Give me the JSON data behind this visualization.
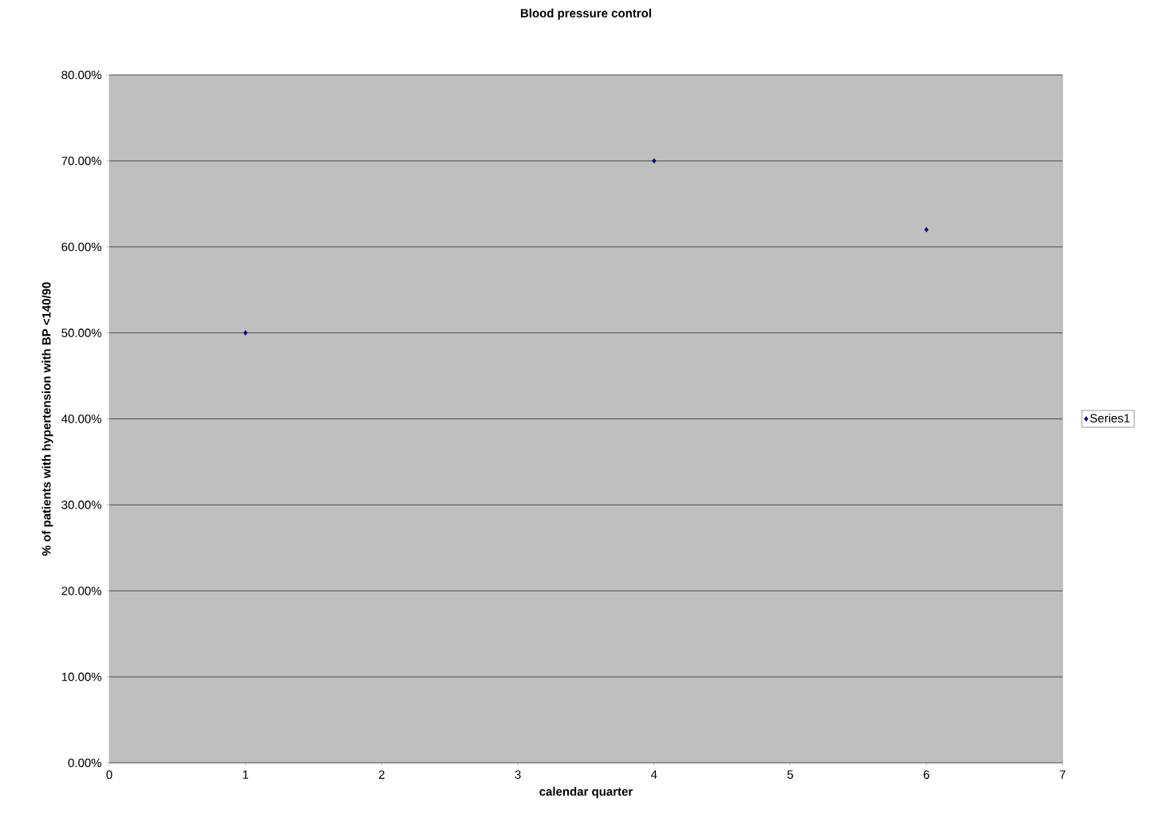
{
  "chart_data": {
    "type": "scatter",
    "title": "Blood pressure control",
    "xlabel": "calendar quarter",
    "ylabel": "% of patients with hypertension with BP <140/90",
    "x": [
      1,
      4,
      6
    ],
    "series": [
      {
        "name": "Series1",
        "color": "#000080",
        "values": [
          50,
          70,
          62
        ]
      }
    ],
    "xlim": [
      0,
      7
    ],
    "xticks": [
      0,
      1,
      2,
      3,
      4,
      5,
      6,
      7
    ],
    "ylim": [
      0,
      80
    ],
    "yticks": [
      {
        "value": 0,
        "label": "0.00%"
      },
      {
        "value": 10,
        "label": "10.00%"
      },
      {
        "value": 20,
        "label": "20.00%"
      },
      {
        "value": 30,
        "label": "30.00%"
      },
      {
        "value": 40,
        "label": "40.00%"
      },
      {
        "value": 50,
        "label": "50.00%"
      },
      {
        "value": 60,
        "label": "60.00%"
      },
      {
        "value": 70,
        "label": "70.00%"
      },
      {
        "value": 80,
        "label": "80.00%"
      }
    ],
    "grid": "y",
    "legend": "right",
    "marker": "diamond"
  }
}
